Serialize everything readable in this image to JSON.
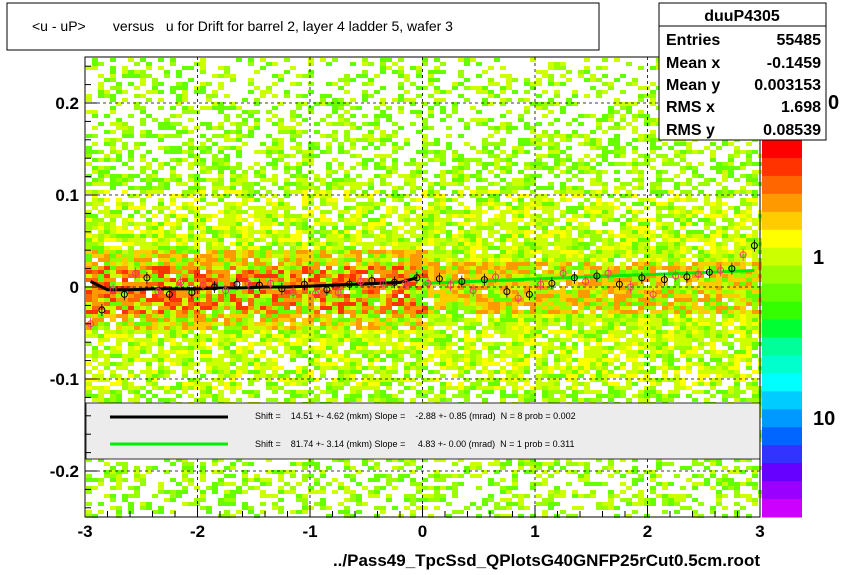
{
  "chart_data": {
    "type": "heatmap",
    "title": "<u - uP>       versus   u for Drift for barrel 2, layer 4 ladder 5, wafer 3",
    "footer": "../Pass49_TpcSsd_QPlotsG40GNFP25rCut0.5cm.root",
    "xlim": [
      -3,
      3
    ],
    "ylim": [
      -0.25,
      0.25
    ],
    "x_ticks": [
      "-3",
      "-2",
      "-1",
      "0",
      "1",
      "2",
      "3"
    ],
    "y_ticks": [
      "0.2",
      "0.1",
      "0",
      "-0.1",
      "-0.2"
    ],
    "z_ticks": [
      "10",
      "1",
      "0"
    ],
    "grid": true,
    "stats": {
      "name": "duuP4305",
      "rows": [
        {
          "label": "Entries",
          "value": "55485"
        },
        {
          "label": "Mean x",
          "value": "-0.1459"
        },
        {
          "label": "Mean y",
          "value": "0.003153"
        },
        {
          "label": "RMS x",
          "value": "1.698"
        },
        {
          "label": "RMS y",
          "value": "0.08539"
        }
      ]
    },
    "legend": [
      {
        "color": "#000000",
        "text": "Shift =    14.51 +- 4.62 (mkm) Slope =    -2.88 +- 0.85 (mrad)  N = 8 prob = 0.002"
      },
      {
        "color": "#00ee00",
        "text": "Shift =    81.74 +- 3.14 (mkm) Slope =     4.83 +- 0.00 (mrad)  N = 1 prob = 0.311"
      }
    ],
    "fit_lines": [
      {
        "name": "black",
        "color": "#000000",
        "x": [
          -2.95,
          -2.8,
          -2.6,
          -2.4,
          -2.2,
          -2.0,
          -1.8,
          -1.6,
          -1.4,
          -1.2,
          -1.0,
          -0.8,
          -0.6,
          -0.4,
          -0.2,
          -0.05
        ],
        "y": [
          0.006,
          -0.003,
          -0.003,
          -0.002,
          -0.002,
          -0.002,
          -0.001,
          -0.001,
          0.0,
          0.0,
          0.001,
          0.002,
          0.003,
          0.004,
          0.005,
          0.01
        ]
      },
      {
        "name": "green",
        "color": "#00ee00",
        "x": [
          0.0,
          2.95
        ],
        "y": [
          0.004,
          0.018
        ]
      }
    ],
    "profile_points": {
      "x": [
        -2.95,
        -2.85,
        -2.75,
        -2.65,
        -2.55,
        -2.45,
        -2.35,
        -2.25,
        -2.15,
        -2.05,
        -1.95,
        -1.85,
        -1.75,
        -1.65,
        -1.55,
        -1.45,
        -1.35,
        -1.25,
        -1.15,
        -1.05,
        -0.95,
        -0.85,
        -0.75,
        -0.65,
        -0.55,
        -0.45,
        -0.35,
        -0.25,
        -0.15,
        -0.05,
        0.05,
        0.15,
        0.25,
        0.35,
        0.45,
        0.55,
        0.65,
        0.75,
        0.85,
        0.95,
        1.05,
        1.15,
        1.25,
        1.35,
        1.45,
        1.55,
        1.65,
        1.75,
        1.85,
        1.95,
        2.05,
        2.15,
        2.25,
        2.35,
        2.45,
        2.55,
        2.65,
        2.75,
        2.85,
        2.95
      ],
      "y": [
        -0.04,
        -0.025,
        -0.003,
        -0.008,
        0.015,
        0.01,
        -0.005,
        -0.008,
        0.005,
        -0.006,
        0.002,
        0.0,
        -0.004,
        0.003,
        0.004,
        0.002,
        0.004,
        -0.002,
        -0.006,
        0.003,
        -0.007,
        -0.003,
        -0.006,
        0.003,
        0.006,
        0.007,
        0.004,
        0.005,
        0.004,
        0.01,
        0.004,
        0.009,
        0.002,
        0.006,
        -0.004,
        0.008,
        0.011,
        -0.005,
        -0.012,
        -0.008,
        0.003,
        0.004,
        0.015,
        0.01,
        0.006,
        0.012,
        0.015,
        0.003,
        0.0,
        0.01,
        -0.008,
        0.008,
        0.012,
        0.011,
        0.014,
        0.016,
        0.018,
        0.02,
        0.035,
        0.045
      ]
    }
  }
}
